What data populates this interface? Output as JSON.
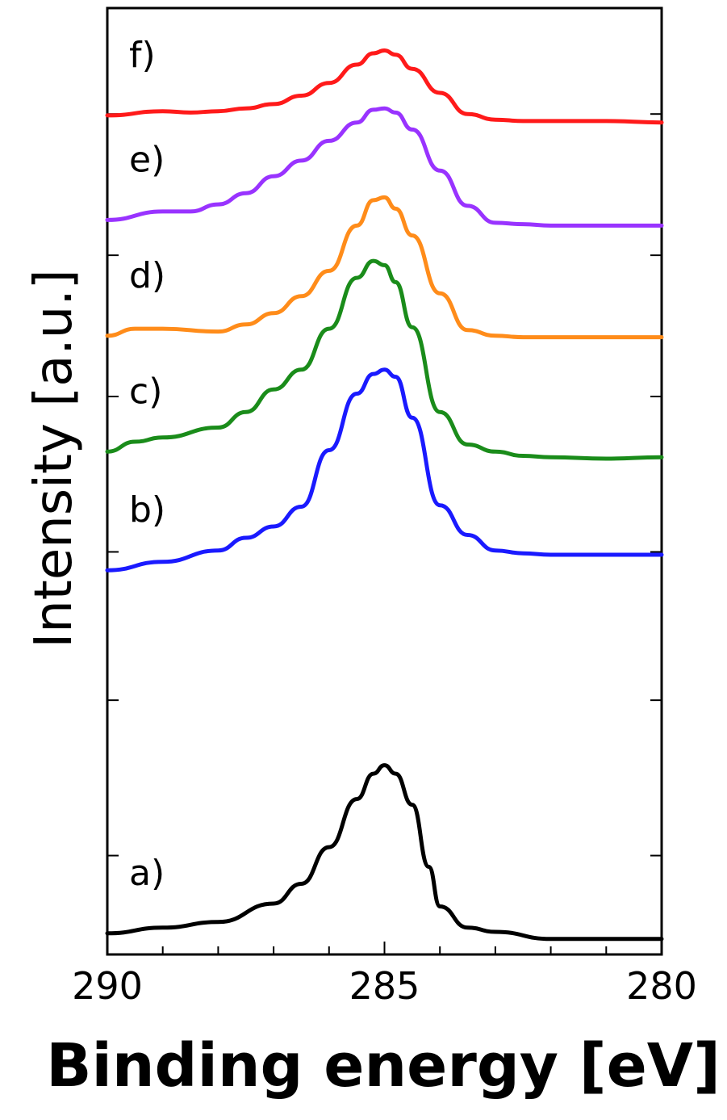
{
  "chart_data": {
    "type": "line",
    "xlabel": "Binding energy [eV]",
    "ylabel": "Intensity [a.u.]",
    "xlim": [
      290,
      280
    ],
    "x_reversed": true,
    "x_ticks": [
      "290",
      "285",
      "280"
    ],
    "grid": false,
    "legend": "inline labels at left of each curve",
    "y_ticks_labeled": false,
    "series": [
      {
        "name": "a)",
        "color": "#000000",
        "x": [
          290,
          289,
          288,
          287,
          286.5,
          286,
          285.5,
          285.2,
          285,
          284.8,
          284.5,
          284.2,
          284,
          283.5,
          283,
          282,
          281,
          280
        ],
        "y": [
          0.05,
          0.09,
          0.13,
          0.26,
          0.4,
          0.66,
          1.0,
          1.18,
          1.24,
          1.18,
          0.96,
          0.52,
          0.24,
          0.09,
          0.06,
          0.01,
          0.01,
          0.01
        ]
      },
      {
        "name": "b)",
        "color": "#1a1aff",
        "x": [
          290,
          289,
          288,
          287.5,
          287,
          286.5,
          286,
          285.5,
          285.2,
          285,
          284.8,
          284.5,
          284,
          283.5,
          283,
          282.5,
          282,
          281,
          280
        ],
        "y": [
          2.62,
          2.68,
          2.76,
          2.85,
          2.93,
          3.07,
          3.47,
          3.87,
          4.01,
          4.04,
          3.99,
          3.7,
          3.08,
          2.87,
          2.76,
          2.74,
          2.73,
          2.73,
          2.73
        ]
      },
      {
        "name": "c)",
        "color": "#1a8c1a",
        "x": [
          290,
          289.5,
          289,
          288,
          287.5,
          287,
          286.5,
          286,
          285.5,
          285.2,
          285,
          284.8,
          284.5,
          284,
          283.5,
          283,
          282.5,
          282,
          281,
          280
        ],
        "y": [
          3.46,
          3.53,
          3.56,
          3.63,
          3.74,
          3.9,
          4.04,
          4.33,
          4.69,
          4.81,
          4.78,
          4.66,
          4.34,
          3.74,
          3.51,
          3.46,
          3.43,
          3.42,
          3.41,
          3.42
        ]
      },
      {
        "name": "d)",
        "color": "#ff8c1a",
        "x": [
          290,
          289.5,
          289,
          288,
          287.5,
          287,
          286.5,
          286,
          285.5,
          285.2,
          285,
          284.8,
          284.5,
          284,
          283.5,
          283,
          282.5,
          282,
          281,
          280
        ],
        "y": [
          4.28,
          4.33,
          4.33,
          4.31,
          4.36,
          4.44,
          4.56,
          4.74,
          5.06,
          5.24,
          5.26,
          5.18,
          4.99,
          4.58,
          4.32,
          4.28,
          4.27,
          4.27,
          4.27,
          4.27
        ]
      },
      {
        "name": "e)",
        "color": "#9933ff",
        "x": [
          290,
          289,
          288.5,
          288,
          287.5,
          287,
          286.5,
          286,
          285.5,
          285.2,
          285,
          284.8,
          284.5,
          284,
          283.5,
          283,
          282.5,
          282,
          281,
          280
        ],
        "y": [
          5.1,
          5.16,
          5.16,
          5.21,
          5.29,
          5.41,
          5.52,
          5.66,
          5.79,
          5.88,
          5.89,
          5.86,
          5.74,
          5.45,
          5.2,
          5.08,
          5.07,
          5.06,
          5.06,
          5.06
        ]
      },
      {
        "name": "f)",
        "color": "#ff1a1a",
        "x": [
          290,
          289,
          288.5,
          288,
          287.5,
          287,
          286.5,
          286,
          285.5,
          285.2,
          285,
          284.8,
          284.5,
          284,
          283.5,
          283,
          282.5,
          282,
          281,
          280
        ],
        "y": [
          5.84,
          5.87,
          5.86,
          5.87,
          5.89,
          5.92,
          5.98,
          6.07,
          6.2,
          6.28,
          6.3,
          6.27,
          6.17,
          6.0,
          5.85,
          5.81,
          5.8,
          5.8,
          5.8,
          5.79
        ]
      }
    ]
  }
}
